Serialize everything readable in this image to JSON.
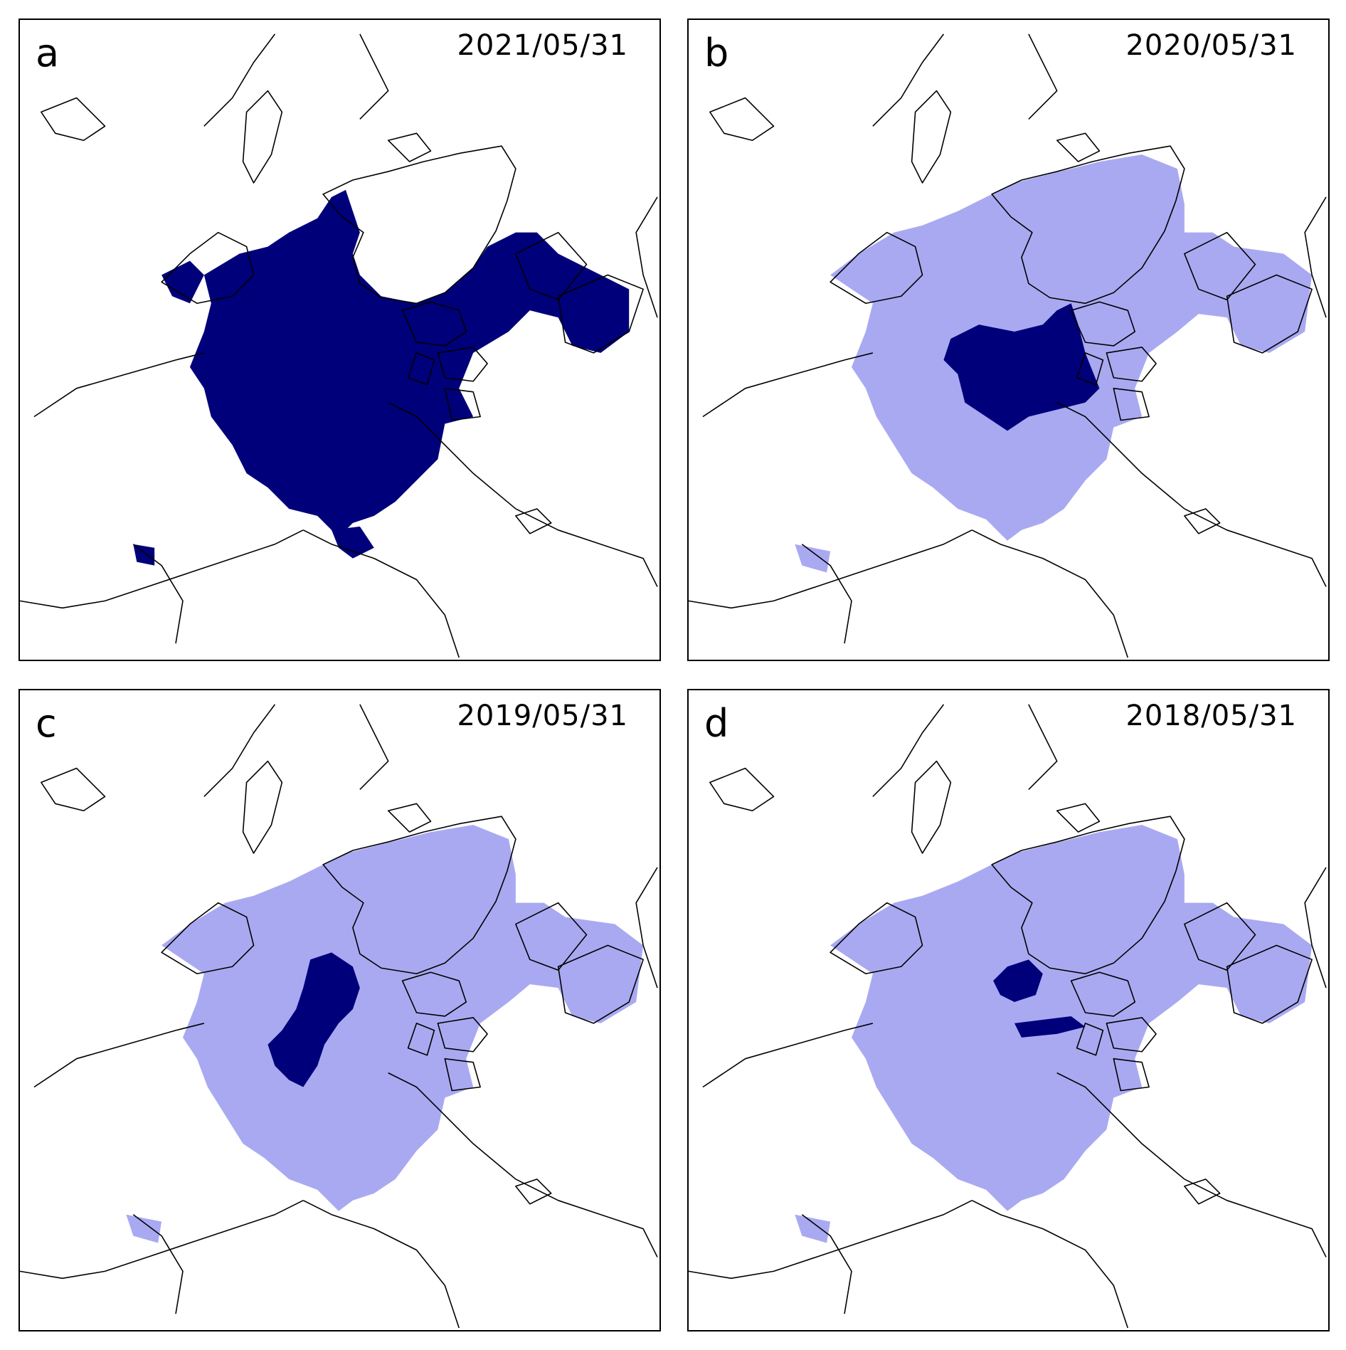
{
  "colors": {
    "multiyear_ice": "#00007a",
    "first_year_ice": "#a9a9f2",
    "coastline": "#000000",
    "background": "#ffffff"
  },
  "panels": [
    {
      "letter": "a",
      "date": "2021/05/31",
      "ice_layer": "full-multiyear-cover"
    },
    {
      "letter": "b",
      "date": "2020/05/31",
      "ice_layer": "central-multiyear-patch"
    },
    {
      "letter": "c",
      "date": "2019/05/31",
      "ice_layer": "diagonal-multiyear-band"
    },
    {
      "letter": "d",
      "date": "2018/05/31",
      "ice_layer": "thin-multiyear-strips"
    }
  ]
}
